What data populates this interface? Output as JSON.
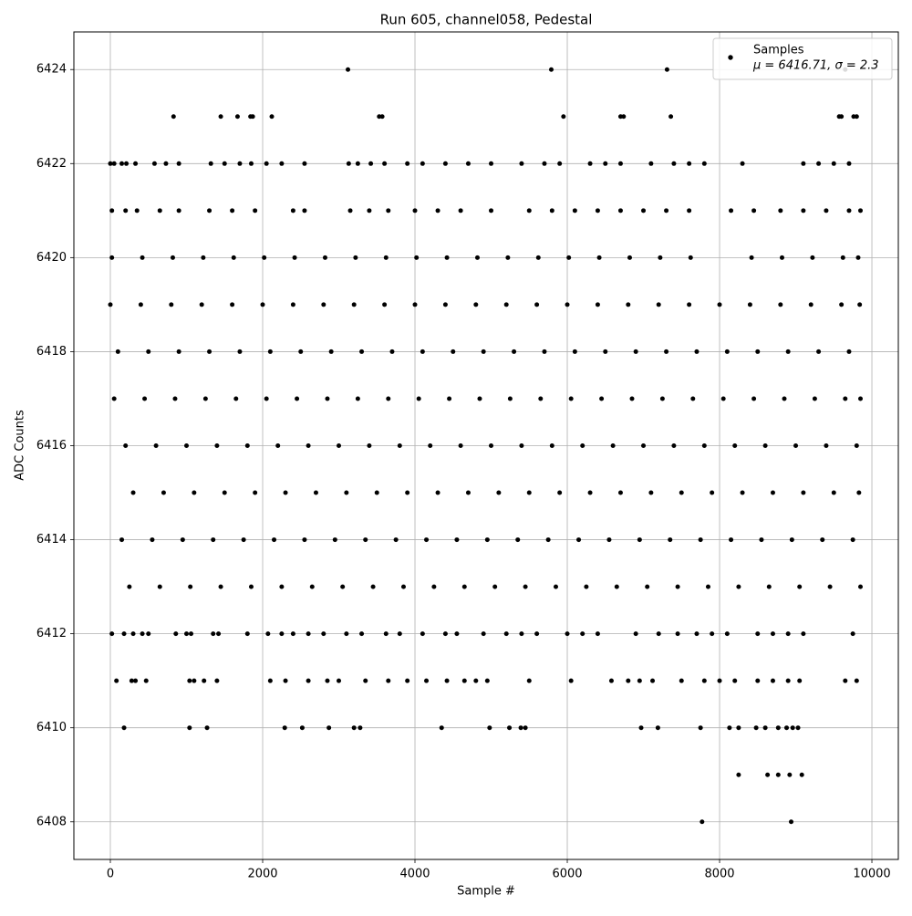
{
  "chart_data": {
    "type": "scatter",
    "title": "Run 605, channel058, Pedestal",
    "x_label": "Sample #",
    "y_label": "ADC Counts",
    "xlim": [
      -479,
      10347
    ],
    "ylim": [
      6407.2,
      6424.8
    ],
    "xticks": [
      0,
      2000,
      4000,
      6000,
      8000,
      10000
    ],
    "yticks": [
      6408,
      6410,
      6412,
      6414,
      6416,
      6418,
      6420,
      6422,
      6424
    ],
    "grid": true,
    "legend": "upper right",
    "legend_note": "μ = 6416.71, σ = 2.3",
    "series": [
      {
        "name": "Samples",
        "color": "#000000",
        "x": [
          3120,
          5790,
          7310,
          9650,
          830,
          1450,
          1670,
          1840,
          1870,
          2120,
          3530,
          3570,
          5950,
          6700,
          6740,
          7360,
          9570,
          9600,
          9760,
          9800,
          0,
          50,
          150,
          210,
          330,
          580,
          730,
          900,
          1320,
          1500,
          1700,
          1850,
          2050,
          2250,
          2550,
          3130,
          3250,
          3420,
          3600,
          3900,
          4100,
          4400,
          4700,
          5000,
          5400,
          5700,
          5900,
          6300,
          6500,
          6700,
          7100,
          7400,
          7600,
          7800,
          8300,
          9100,
          9300,
          9500,
          9700,
          20,
          200,
          350,
          650,
          900,
          1300,
          1600,
          1900,
          2400,
          2550,
          3150,
          3400,
          3650,
          4000,
          4300,
          4600,
          5000,
          5500,
          5800,
          6100,
          6400,
          6700,
          7000,
          7300,
          7600,
          8150,
          8450,
          8800,
          9100,
          9400,
          9700,
          9850,
          20,
          420,
          820,
          1220,
          1620,
          2020,
          2420,
          2820,
          3220,
          3620,
          4020,
          4420,
          4820,
          5220,
          5620,
          6020,
          6420,
          6820,
          7220,
          7620,
          8420,
          8820,
          9220,
          9620,
          9820,
          0,
          400,
          800,
          1200,
          1600,
          2000,
          2400,
          2800,
          3200,
          3600,
          4000,
          4400,
          4800,
          5200,
          5600,
          6000,
          6400,
          6800,
          7200,
          7600,
          8000,
          8400,
          8800,
          9200,
          9600,
          9840,
          100,
          500,
          900,
          1300,
          1700,
          2100,
          2500,
          2900,
          3300,
          3700,
          4100,
          4500,
          4900,
          5300,
          5700,
          6100,
          6500,
          6900,
          7300,
          7700,
          8100,
          8500,
          8900,
          9300,
          9700,
          50,
          450,
          850,
          1250,
          1650,
          2050,
          2450,
          2850,
          3250,
          3650,
          4050,
          4450,
          4850,
          5250,
          5650,
          6050,
          6450,
          6850,
          7250,
          7650,
          8050,
          8450,
          8850,
          9250,
          9650,
          9850,
          200,
          600,
          1000,
          1400,
          1800,
          2200,
          2600,
          3000,
          3400,
          3800,
          4200,
          4600,
          5000,
          5400,
          5800,
          6200,
          6600,
          7000,
          7400,
          7800,
          8200,
          8600,
          9000,
          9400,
          9800,
          300,
          700,
          1100,
          1500,
          1900,
          2300,
          2700,
          3100,
          3500,
          3900,
          4300,
          4700,
          5100,
          5500,
          5900,
          6300,
          6700,
          7100,
          7500,
          7900,
          8300,
          8700,
          9100,
          9500,
          9830,
          150,
          550,
          950,
          1350,
          1750,
          2150,
          2550,
          2950,
          3350,
          3750,
          4150,
          4550,
          4950,
          5350,
          5750,
          6150,
          6550,
          6950,
          7350,
          7750,
          8150,
          8550,
          8950,
          9350,
          9750,
          250,
          650,
          1050,
          1450,
          1850,
          2250,
          2650,
          3050,
          3450,
          3850,
          4250,
          4650,
          5050,
          5450,
          5850,
          6250,
          6650,
          7050,
          7450,
          7850,
          8250,
          8650,
          9050,
          9450,
          9850,
          20,
          180,
          300,
          420,
          500,
          860,
          1000,
          1060,
          1350,
          1420,
          1800,
          2070,
          2250,
          2400,
          2600,
          2800,
          3100,
          3300,
          3620,
          3800,
          4100,
          4400,
          4550,
          4900,
          5200,
          5400,
          5600,
          6000,
          6200,
          6400,
          6900,
          7200,
          7450,
          7700,
          7900,
          8100,
          8500,
          8700,
          8900,
          9100,
          9750,
          80,
          280,
          330,
          470,
          1040,
          1100,
          1230,
          1400,
          2100,
          2300,
          2600,
          2850,
          3000,
          3350,
          3650,
          3900,
          4150,
          4420,
          4650,
          4800,
          4950,
          5500,
          6050,
          6580,
          6800,
          6950,
          7120,
          7500,
          7800,
          8000,
          8200,
          8500,
          8700,
          8900,
          9050,
          9650,
          9800,
          180,
          1040,
          1270,
          2290,
          2520,
          2870,
          3200,
          3280,
          4350,
          4980,
          5240,
          5390,
          5450,
          6970,
          7190,
          7750,
          8130,
          8250,
          8480,
          8600,
          8770,
          8880,
          8960,
          9030,
          8250,
          8630,
          8770,
          8920,
          9080,
          7770,
          8940
        ],
        "values": [
          6424,
          6424,
          6424,
          6424,
          6423,
          6423,
          6423,
          6423,
          6423,
          6423,
          6423,
          6423,
          6423,
          6423,
          6423,
          6423,
          6423,
          6423,
          6423,
          6423,
          6422,
          6422,
          6422,
          6422,
          6422,
          6422,
          6422,
          6422,
          6422,
          6422,
          6422,
          6422,
          6422,
          6422,
          6422,
          6422,
          6422,
          6422,
          6422,
          6422,
          6422,
          6422,
          6422,
          6422,
          6422,
          6422,
          6422,
          6422,
          6422,
          6422,
          6422,
          6422,
          6422,
          6422,
          6422,
          6422,
          6422,
          6422,
          6422,
          6421,
          6421,
          6421,
          6421,
          6421,
          6421,
          6421,
          6421,
          6421,
          6421,
          6421,
          6421,
          6421,
          6421,
          6421,
          6421,
          6421,
          6421,
          6421,
          6421,
          6421,
          6421,
          6421,
          6421,
          6421,
          6421,
          6421,
          6421,
          6421,
          6421,
          6421,
          6421,
          6420,
          6420,
          6420,
          6420,
          6420,
          6420,
          6420,
          6420,
          6420,
          6420,
          6420,
          6420,
          6420,
          6420,
          6420,
          6420,
          6420,
          6420,
          6420,
          6420,
          6420,
          6420,
          6420,
          6420,
          6420,
          6419,
          6419,
          6419,
          6419,
          6419,
          6419,
          6419,
          6419,
          6419,
          6419,
          6419,
          6419,
          6419,
          6419,
          6419,
          6419,
          6419,
          6419,
          6419,
          6419,
          6419,
          6419,
          6419,
          6419,
          6419,
          6419,
          6418,
          6418,
          6418,
          6418,
          6418,
          6418,
          6418,
          6418,
          6418,
          6418,
          6418,
          6418,
          6418,
          6418,
          6418,
          6418,
          6418,
          6418,
          6418,
          6418,
          6418,
          6418,
          6418,
          6418,
          6418,
          6417,
          6417,
          6417,
          6417,
          6417,
          6417,
          6417,
          6417,
          6417,
          6417,
          6417,
          6417,
          6417,
          6417,
          6417,
          6417,
          6417,
          6417,
          6417,
          6417,
          6417,
          6417,
          6417,
          6417,
          6417,
          6417,
          6416,
          6416,
          6416,
          6416,
          6416,
          6416,
          6416,
          6416,
          6416,
          6416,
          6416,
          6416,
          6416,
          6416,
          6416,
          6416,
          6416,
          6416,
          6416,
          6416,
          6416,
          6416,
          6416,
          6416,
          6416,
          6415,
          6415,
          6415,
          6415,
          6415,
          6415,
          6415,
          6415,
          6415,
          6415,
          6415,
          6415,
          6415,
          6415,
          6415,
          6415,
          6415,
          6415,
          6415,
          6415,
          6415,
          6415,
          6415,
          6415,
          6415,
          6414,
          6414,
          6414,
          6414,
          6414,
          6414,
          6414,
          6414,
          6414,
          6414,
          6414,
          6414,
          6414,
          6414,
          6414,
          6414,
          6414,
          6414,
          6414,
          6414,
          6414,
          6414,
          6414,
          6414,
          6414,
          6413,
          6413,
          6413,
          6413,
          6413,
          6413,
          6413,
          6413,
          6413,
          6413,
          6413,
          6413,
          6413,
          6413,
          6413,
          6413,
          6413,
          6413,
          6413,
          6413,
          6413,
          6413,
          6413,
          6413,
          6413,
          6412,
          6412,
          6412,
          6412,
          6412,
          6412,
          6412,
          6412,
          6412,
          6412,
          6412,
          6412,
          6412,
          6412,
          6412,
          6412,
          6412,
          6412,
          6412,
          6412,
          6412,
          6412,
          6412,
          6412,
          6412,
          6412,
          6412,
          6412,
          6412,
          6412,
          6412,
          6412,
          6412,
          6412,
          6412,
          6412,
          6412,
          6412,
          6412,
          6412,
          6412,
          6411,
          6411,
          6411,
          6411,
          6411,
          6411,
          6411,
          6411,
          6411,
          6411,
          6411,
          6411,
          6411,
          6411,
          6411,
          6411,
          6411,
          6411,
          6411,
          6411,
          6411,
          6411,
          6411,
          6411,
          6411,
          6411,
          6411,
          6411,
          6411,
          6411,
          6411,
          6411,
          6411,
          6411,
          6411,
          6411,
          6411,
          6410,
          6410,
          6410,
          6410,
          6410,
          6410,
          6410,
          6410,
          6410,
          6410,
          6410,
          6410,
          6410,
          6410,
          6410,
          6410,
          6410,
          6410,
          6410,
          6410,
          6410,
          6410,
          6410,
          6410,
          6409,
          6409,
          6409,
          6409,
          6409,
          6408,
          6408
        ]
      }
    ]
  }
}
